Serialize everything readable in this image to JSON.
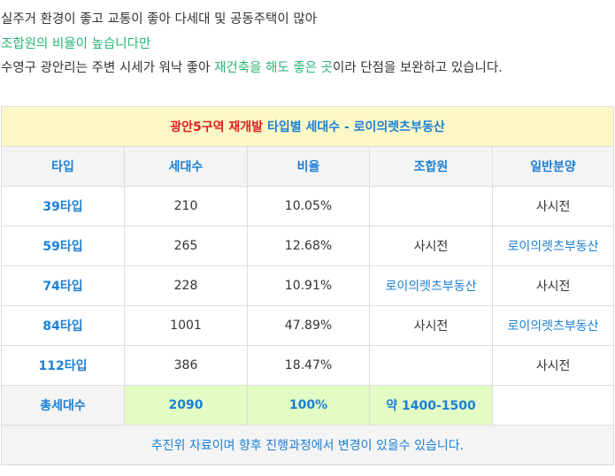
{
  "intro": {
    "line1": "실주거 환경이 좋고 교통이 좋아 다세대 및 공동주택이 많아",
    "line2": "조합원의 비율이 높습니다만",
    "line3_a": "수영구 광안리는 주변 시세가 워낙 좋아 ",
    "line3_b": "재건축을 해도 좋은 곳",
    "line3_c": "이라 단점을 보완하고 있습니다."
  },
  "table": {
    "title_red": "광안5구역 재개발",
    "title_blue": " 타입별 세대수 - 로이의렛츠부동산",
    "headers": [
      "타입",
      "세대수",
      "비율",
      "조합원",
      "일반분양"
    ],
    "rows": [
      {
        "type": "39타입",
        "units": "210",
        "ratio": "10.05%",
        "member": "",
        "general": "사시전"
      },
      {
        "type": "59타입",
        "units": "265",
        "ratio": "12.68%",
        "member": "사시전",
        "general": "로이의렛츠부동산"
      },
      {
        "type": "74타입",
        "units": "228",
        "ratio": "10.91%",
        "member": "로이의렛츠부동산",
        "general": "사시전"
      },
      {
        "type": "84타입",
        "units": "1001",
        "ratio": "47.89%",
        "member": "사시전",
        "general": "로이의렛츠부동산"
      },
      {
        "type": "112타입",
        "units": "386",
        "ratio": "18.47%",
        "member": "",
        "general": "사시전"
      }
    ],
    "total": {
      "label": "총세대수",
      "units": "2090",
      "ratio": "100%",
      "member": "약 1400-1500",
      "general": ""
    },
    "note": "추진위 자료이며 향후 진행과정에서 변경이 있을수 있습니다."
  },
  "colors": {
    "accent_blue": "#1c7fd6",
    "accent_green": "#2bb673",
    "title_red": "#e02020",
    "title_bg": "#fcf8c5",
    "total_green_bg": "#e2fcc4"
  }
}
